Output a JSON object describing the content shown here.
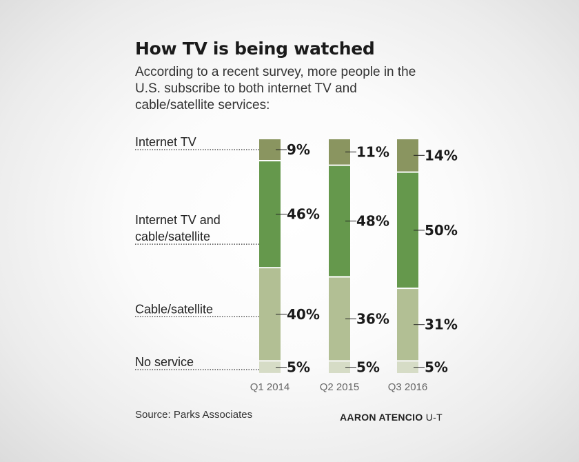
{
  "title": "How TV is being watched",
  "subtitle": "According to a recent survey, more people in the U.S. subscribe to both internet TV and cable/satellite services:",
  "source": "Source: Parks Associates",
  "credit": {
    "name": "AARON ATENCIO",
    "org": "U-T"
  },
  "colors": {
    "Internet TV": "#8a9560",
    "Internet TV and cable/satellite": "#65984c",
    "Cable/satellite": "#b2bf94",
    "No service": "#d6dcc6"
  },
  "chart_data": {
    "type": "bar",
    "stacked": true,
    "categories": [
      "Q1 2014",
      "Q2 2015",
      "Q3 2016"
    ],
    "series": [
      {
        "name": "Internet TV",
        "label_lines": [
          "Internet TV"
        ],
        "values": [
          9,
          11,
          14
        ]
      },
      {
        "name": "Internet TV and cable/satellite",
        "label_lines": [
          "Internet TV and",
          "cable/satellite"
        ],
        "values": [
          46,
          48,
          50
        ]
      },
      {
        "name": "Cable/satellite",
        "label_lines": [
          "Cable/satellite"
        ],
        "values": [
          40,
          36,
          31
        ]
      },
      {
        "name": "No service",
        "label_lines": [
          "No service"
        ],
        "values": [
          5,
          5,
          5
        ]
      }
    ],
    "value_suffix": "%",
    "ylim": [
      0,
      100
    ]
  }
}
